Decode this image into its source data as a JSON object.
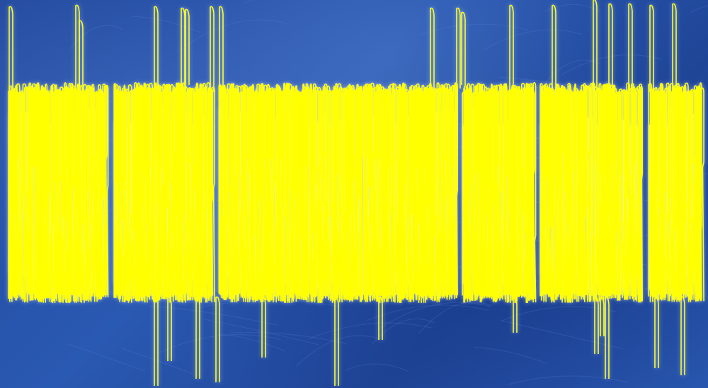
{
  "slide": {
    "background_color": "#2651a6",
    "text_color": "#ffff00",
    "glow_color": "#c8d8ff"
  }
}
